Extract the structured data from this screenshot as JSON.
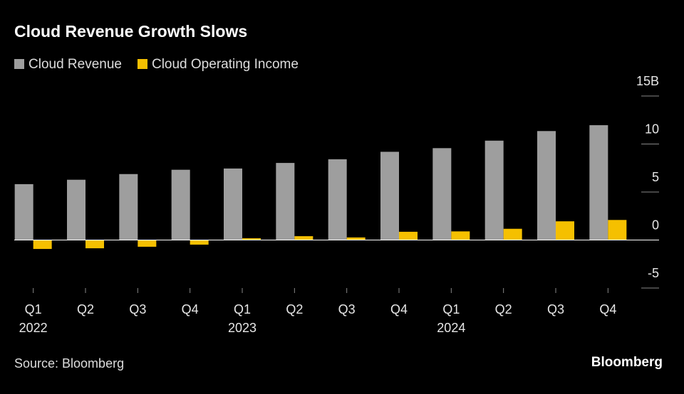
{
  "chart_data": {
    "type": "bar",
    "title": "Cloud Revenue Growth Slows",
    "categories": [
      "Q1",
      "Q2",
      "Q3",
      "Q4",
      "Q1",
      "Q2",
      "Q3",
      "Q4",
      "Q1",
      "Q2",
      "Q3",
      "Q4"
    ],
    "years": [
      "2022",
      "2023",
      "2024"
    ],
    "series": [
      {
        "name": "Cloud Revenue",
        "color": "#9e9e9e",
        "values": [
          5.82,
          6.28,
          6.87,
          7.32,
          7.45,
          8.03,
          8.41,
          9.19,
          9.57,
          10.35,
          11.35,
          11.96
        ]
      },
      {
        "name": "Cloud Operating Income",
        "color": "#f5c000",
        "values": [
          -0.93,
          -0.86,
          -0.7,
          -0.48,
          0.19,
          0.4,
          0.27,
          0.86,
          0.9,
          1.17,
          1.95,
          2.09
        ]
      }
    ],
    "ylim": [
      -5,
      15
    ],
    "yticks": [
      -5,
      0,
      5,
      10,
      {
        "value": 15,
        "label": "15B"
      }
    ],
    "source": "Source: Bloomberg",
    "brand": "Bloomberg"
  }
}
